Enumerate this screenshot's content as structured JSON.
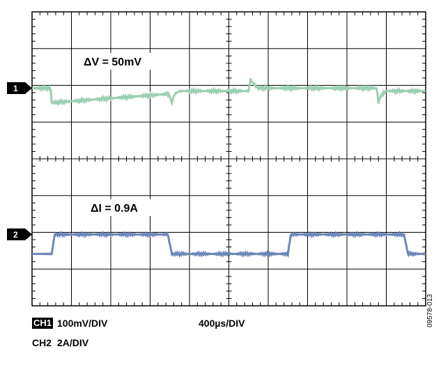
{
  "colors": {
    "ch1_trace": "#9ccfb3",
    "ch2_trace": "#6f86b8",
    "grid": "#000000",
    "background": "#ffffff"
  },
  "chart_data": {
    "type": "line",
    "title": "",
    "grid": true,
    "divisions": {
      "x": 10,
      "y": 8
    },
    "time_per_div_us": 400,
    "annotations": [
      {
        "channel": 1,
        "text": "ΔV = 50mV"
      },
      {
        "channel": 2,
        "text": "ΔI = 0.9A"
      }
    ],
    "channel_markers": [
      "1",
      "2"
    ],
    "series": [
      {
        "channel": 1,
        "unit": "mV",
        "x": [
          0,
          180,
          190,
          200,
          1380,
          1390,
          1400,
          1410,
          1420,
          1430,
          1450,
          1500,
          1560,
          2200,
          2210,
          2220,
          2240,
          2260,
          2300,
          2360,
          2600,
          3500,
          3510,
          3520,
          3540,
          3560,
          3600,
          3660,
          4000
        ],
        "y": [
          0,
          0,
          -5,
          -50,
          -20,
          -20,
          -30,
          -40,
          -50,
          -40,
          -20,
          -10,
          -10,
          -10,
          10,
          30,
          20,
          10,
          0,
          0,
          0,
          0,
          -20,
          -50,
          -30,
          -20,
          -10,
          -10,
          -10
        ]
      },
      {
        "channel": 2,
        "unit": "A",
        "x": [
          0,
          200,
          230,
          1380,
          1420,
          2600,
          2630,
          3780,
          3820,
          4000
        ],
        "y": [
          0,
          0,
          0.9,
          0.9,
          0,
          0,
          0.9,
          0.9,
          0,
          0
        ]
      }
    ]
  },
  "footer": {
    "ch1_badge": "CH1",
    "ch1_scale": "100mV/DIV",
    "timebase": "400µs/DIV",
    "ch2_label": "CH2",
    "ch2_scale": "2A/DIV"
  },
  "figure_id": "09578-013"
}
